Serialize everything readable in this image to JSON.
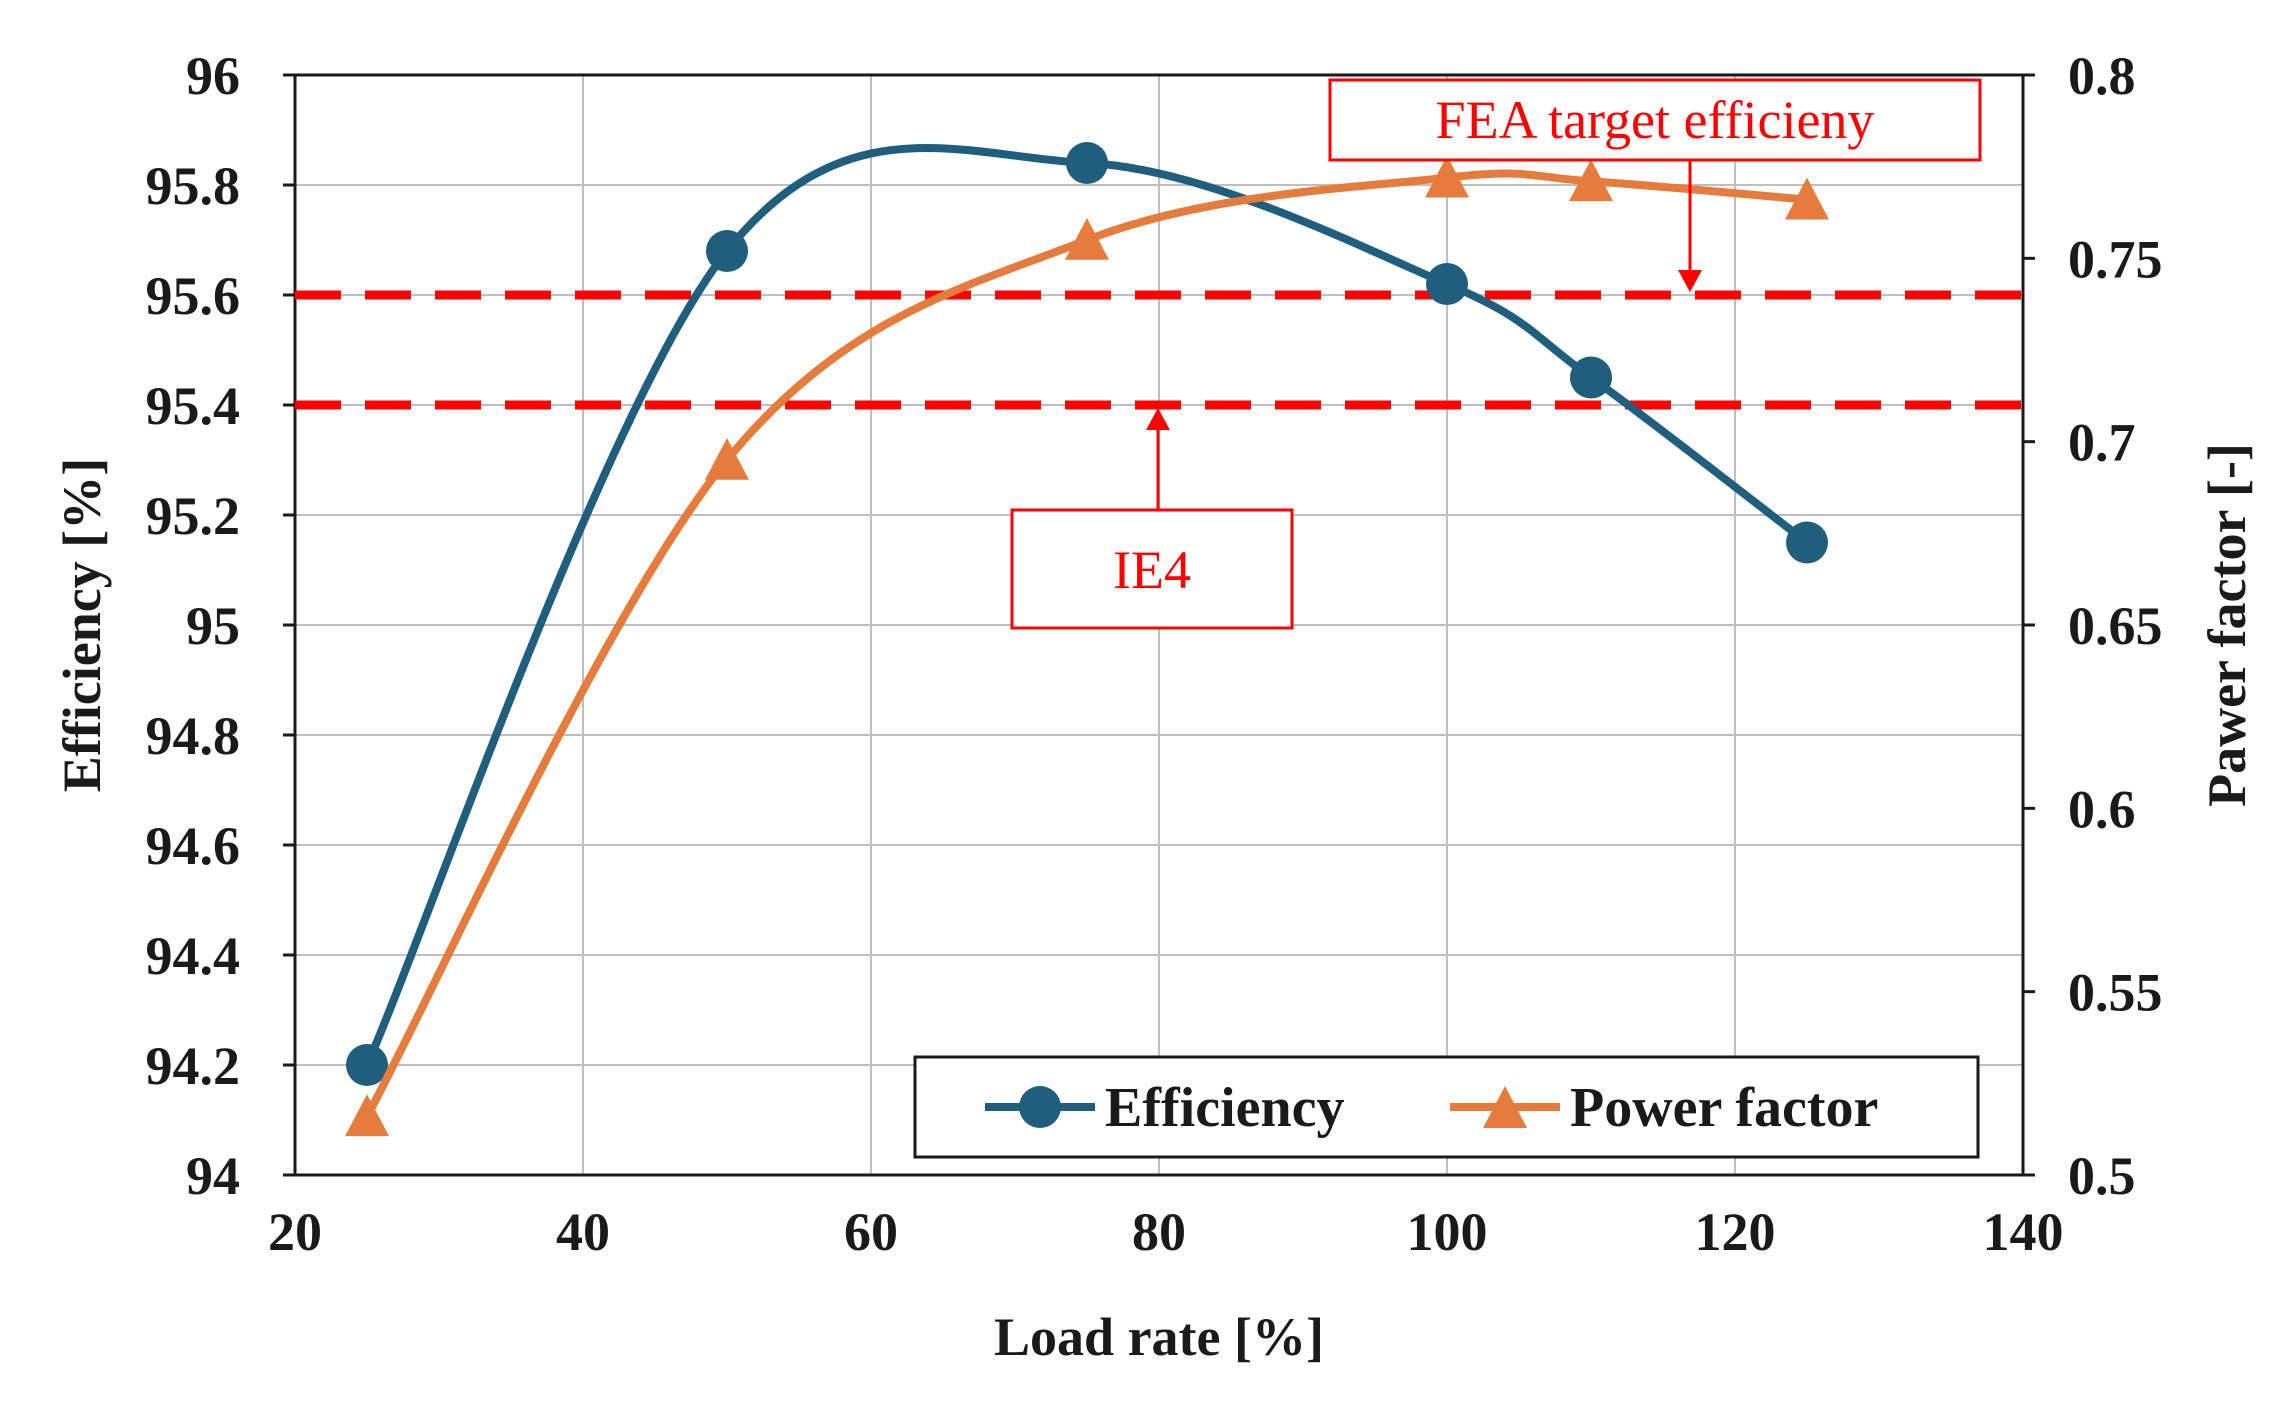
{
  "chart_data": {
    "type": "line",
    "title": "",
    "xlabel": "Load rate [%]",
    "ylabel": "Efficiency [%]",
    "y2label": "Pawer factor [-]",
    "xlim": [
      20,
      140
    ],
    "ylim": [
      94,
      96
    ],
    "y2lim": [
      0.5,
      0.8
    ],
    "xticks": [
      20,
      40,
      60,
      80,
      100,
      120,
      140
    ],
    "yticks": [
      94,
      94.2,
      94.4,
      94.6,
      94.8,
      95,
      95.2,
      95.4,
      95.6,
      95.8,
      96
    ],
    "y2ticks": [
      0.5,
      0.55,
      0.6,
      0.65,
      0.7,
      0.75,
      0.8
    ],
    "grid": true,
    "legend_position": "bottom-right",
    "series": [
      {
        "name": "Efficiency",
        "axis": "left",
        "marker": "circle",
        "color": "#1F5F7D",
        "x": [
          25,
          50,
          75,
          100,
          110,
          125
        ],
        "values": [
          94.2,
          95.68,
          95.84,
          95.62,
          95.45,
          95.15
        ]
      },
      {
        "name": "Power factor",
        "axis": "right",
        "marker": "triangle",
        "color": "#E57B3C",
        "x": [
          25,
          50,
          75,
          100,
          110,
          125
        ],
        "values": [
          0.516,
          0.695,
          0.755,
          0.772,
          0.771,
          0.766
        ]
      }
    ],
    "reference_lines": [
      {
        "label": "FEA target efficieny",
        "axis": "left",
        "value": 95.6,
        "color": "#FF0000",
        "style": "dashed"
      },
      {
        "label": "IE4",
        "axis": "left",
        "value": 95.4,
        "color": "#FF0000",
        "style": "dashed"
      }
    ]
  }
}
